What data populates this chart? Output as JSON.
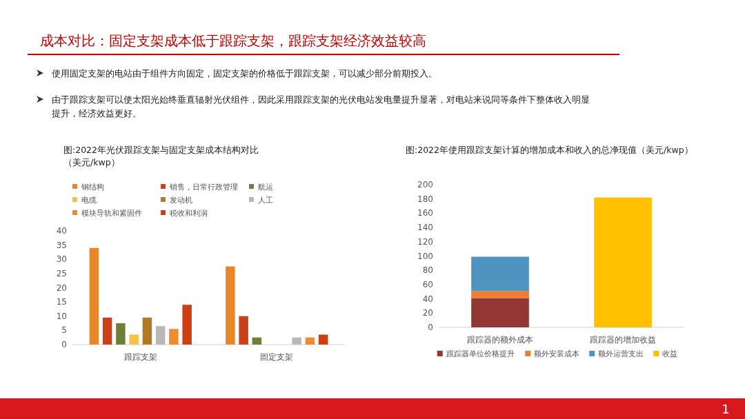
{
  "chart_data": [
    {
      "type": "bar",
      "title": "图:2022年光伏跟踪支架与固定支架成本结构对比",
      "subtitle": "（美元/kwp）",
      "categories": [
        "跟踪支架",
        "固定支架"
      ],
      "series": [
        {
          "name": "钢结构",
          "color": "#e8862a",
          "values": [
            34,
            27.5
          ]
        },
        {
          "name": "销售，日常行政管理",
          "color": "#c9401a",
          "values": [
            9.5,
            10
          ]
        },
        {
          "name": "航运",
          "color": "#6f7f3a",
          "values": [
            7.5,
            2.5
          ]
        },
        {
          "name": "电缆",
          "color": "#f5c243",
          "values": [
            3.5,
            null
          ]
        },
        {
          "name": "发动机",
          "color": "#b07a24",
          "values": [
            9.5,
            null
          ]
        },
        {
          "name": "人工",
          "color": "#b8b8b8",
          "values": [
            6.5,
            2.5
          ]
        },
        {
          "name": "模块导轨和紧固件",
          "color": "#ef8a2e",
          "values": [
            5.5,
            2.5
          ]
        },
        {
          "name": "税收和利润",
          "color": "#cc3e14",
          "values": [
            14,
            3.5
          ]
        }
      ],
      "ylim": [
        0,
        40
      ],
      "yticks": [
        0,
        5,
        10,
        15,
        20,
        25,
        30,
        35,
        40
      ],
      "grid": false,
      "legend": "top",
      "annotations": [
        "成本对比：固定支架成本低于跟踪支架，跟踪支架经济效益较高",
        "使用固定支架的电站由于组件方向固定，固定支架的价格低于跟踪支架，可以减少部分前期投入。",
        "由于跟踪支架可以使太阳光始终垂直辐射光伏组件，因此采用跟踪支架的光伏电站发电量提升显著，对电站来说同等条件下整体收入明显提升，经济效益更好。"
      ]
    },
    {
      "type": "bar",
      "stacked": true,
      "title": "图:2022年使用跟踪支架计算的增加成本和收入的总净现值（美元/kwp）",
      "categories": [
        "跟踪器的额外成本",
        "跟踪器的增加收益"
      ],
      "series": [
        {
          "name": "跟踪器单位价格提升",
          "color": "#943634",
          "values": [
            41,
            null
          ]
        },
        {
          "name": "额外安装成本",
          "color": "#ed7d31",
          "values": [
            10,
            null
          ]
        },
        {
          "name": "额外运营支出",
          "color": "#4f93c0",
          "values": [
            48,
            null
          ]
        },
        {
          "name": "收益",
          "color": "#ffc000",
          "values": [
            null,
            182
          ]
        }
      ],
      "ylim": [
        0,
        200
      ],
      "yticks": [
        0,
        20,
        40,
        60,
        80,
        100,
        120,
        140,
        160,
        180,
        200
      ],
      "grid": false,
      "legend": "bottom",
      "annotations": [
        "1"
      ]
    }
  ]
}
